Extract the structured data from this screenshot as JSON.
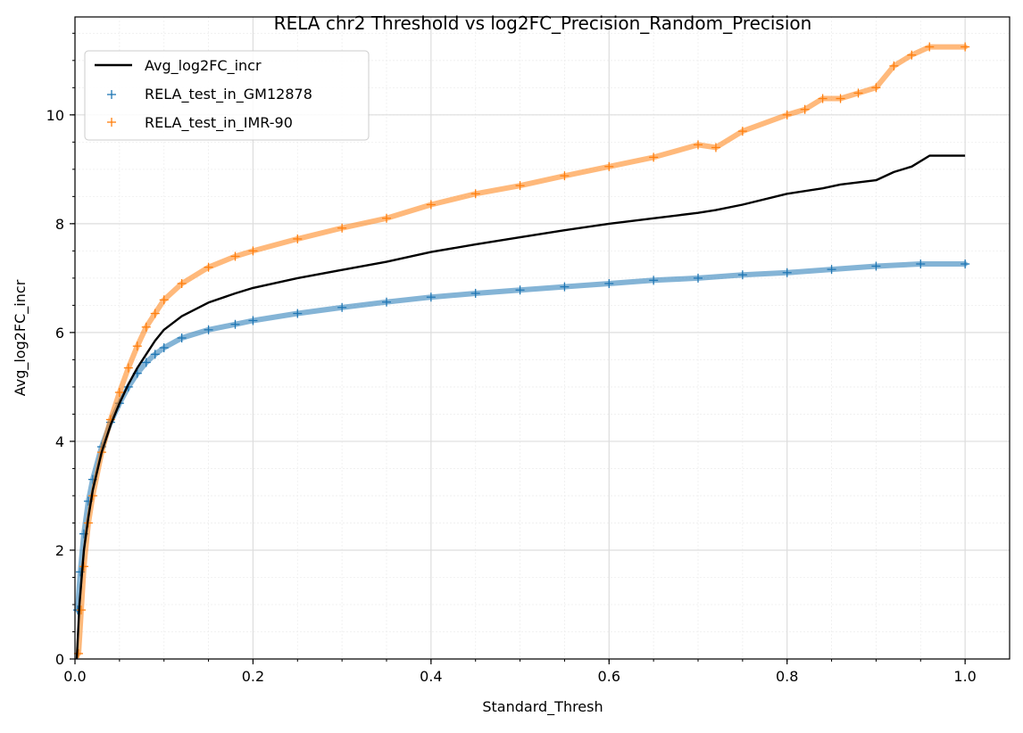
{
  "chart_data": {
    "type": "line",
    "title": "RELA chr2 Threshold vs log2FC_Precision_Random_Precision",
    "xlabel": "Standard_Thresh",
    "ylabel": "Avg_log2FC_incr",
    "xlim": [
      0.0,
      1.05
    ],
    "ylim": [
      0,
      11.8
    ],
    "xticks": [
      0.0,
      0.2,
      0.4,
      0.6,
      0.8,
      1.0
    ],
    "xtick_labels": [
      "0.0",
      "0.2",
      "0.4",
      "0.6",
      "0.8",
      "1.0"
    ],
    "yticks": [
      0,
      2,
      4,
      6,
      8,
      10
    ],
    "ytick_labels": [
      "0",
      "2",
      "4",
      "6",
      "8",
      "10"
    ],
    "grid": true,
    "minor_grid": true,
    "legend_position": "top-left",
    "series": [
      {
        "name": "Avg_log2FC_incr",
        "kind": "line",
        "color": "#000000",
        "x": [
          0.002,
          0.005,
          0.01,
          0.015,
          0.02,
          0.03,
          0.04,
          0.05,
          0.06,
          0.07,
          0.08,
          0.09,
          0.1,
          0.12,
          0.15,
          0.18,
          0.2,
          0.25,
          0.3,
          0.35,
          0.4,
          0.45,
          0.5,
          0.55,
          0.6,
          0.65,
          0.7,
          0.72,
          0.75,
          0.8,
          0.84,
          0.86,
          0.9,
          0.92,
          0.94,
          0.96,
          1.0
        ],
        "y": [
          0.0,
          1.0,
          2.0,
          2.6,
          3.1,
          3.8,
          4.3,
          4.7,
          5.05,
          5.35,
          5.6,
          5.85,
          6.05,
          6.3,
          6.55,
          6.72,
          6.82,
          7.0,
          7.15,
          7.3,
          7.48,
          7.62,
          7.75,
          7.88,
          8.0,
          8.1,
          8.2,
          8.25,
          8.35,
          8.55,
          8.65,
          8.72,
          8.8,
          8.95,
          9.05,
          9.25,
          9.25
        ]
      },
      {
        "name": "RELA_test_in_GM12878",
        "kind": "scatter",
        "marker": "+",
        "color": "#1f77b4",
        "x": [
          0.003,
          0.006,
          0.01,
          0.015,
          0.02,
          0.03,
          0.04,
          0.05,
          0.06,
          0.07,
          0.08,
          0.09,
          0.1,
          0.12,
          0.15,
          0.18,
          0.2,
          0.25,
          0.3,
          0.35,
          0.4,
          0.45,
          0.5,
          0.55,
          0.6,
          0.65,
          0.7,
          0.75,
          0.8,
          0.85,
          0.9,
          0.95,
          1.0
        ],
        "y": [
          0.9,
          1.6,
          2.3,
          2.9,
          3.3,
          3.9,
          4.35,
          4.7,
          5.0,
          5.25,
          5.45,
          5.6,
          5.72,
          5.9,
          6.05,
          6.15,
          6.22,
          6.35,
          6.46,
          6.56,
          6.65,
          6.72,
          6.78,
          6.84,
          6.9,
          6.96,
          7.0,
          7.06,
          7.1,
          7.16,
          7.22,
          7.26,
          7.26
        ]
      },
      {
        "name": "RELA_test_in_IMR-90",
        "kind": "scatter",
        "marker": "+",
        "color": "#ff7f0e",
        "x": [
          0.004,
          0.007,
          0.01,
          0.015,
          0.02,
          0.03,
          0.04,
          0.05,
          0.06,
          0.07,
          0.08,
          0.09,
          0.1,
          0.12,
          0.15,
          0.18,
          0.2,
          0.25,
          0.3,
          0.35,
          0.4,
          0.45,
          0.5,
          0.55,
          0.6,
          0.65,
          0.7,
          0.72,
          0.75,
          0.8,
          0.82,
          0.84,
          0.86,
          0.88,
          0.9,
          0.92,
          0.94,
          0.96,
          1.0
        ],
        "y": [
          0.1,
          0.9,
          1.7,
          2.5,
          3.0,
          3.8,
          4.4,
          4.9,
          5.35,
          5.75,
          6.1,
          6.35,
          6.6,
          6.9,
          7.2,
          7.4,
          7.5,
          7.72,
          7.92,
          8.1,
          8.35,
          8.55,
          8.7,
          8.88,
          9.05,
          9.22,
          9.45,
          9.4,
          9.7,
          10.0,
          10.1,
          10.3,
          10.3,
          10.4,
          10.5,
          10.9,
          11.1,
          11.25,
          11.25
        ]
      }
    ]
  }
}
